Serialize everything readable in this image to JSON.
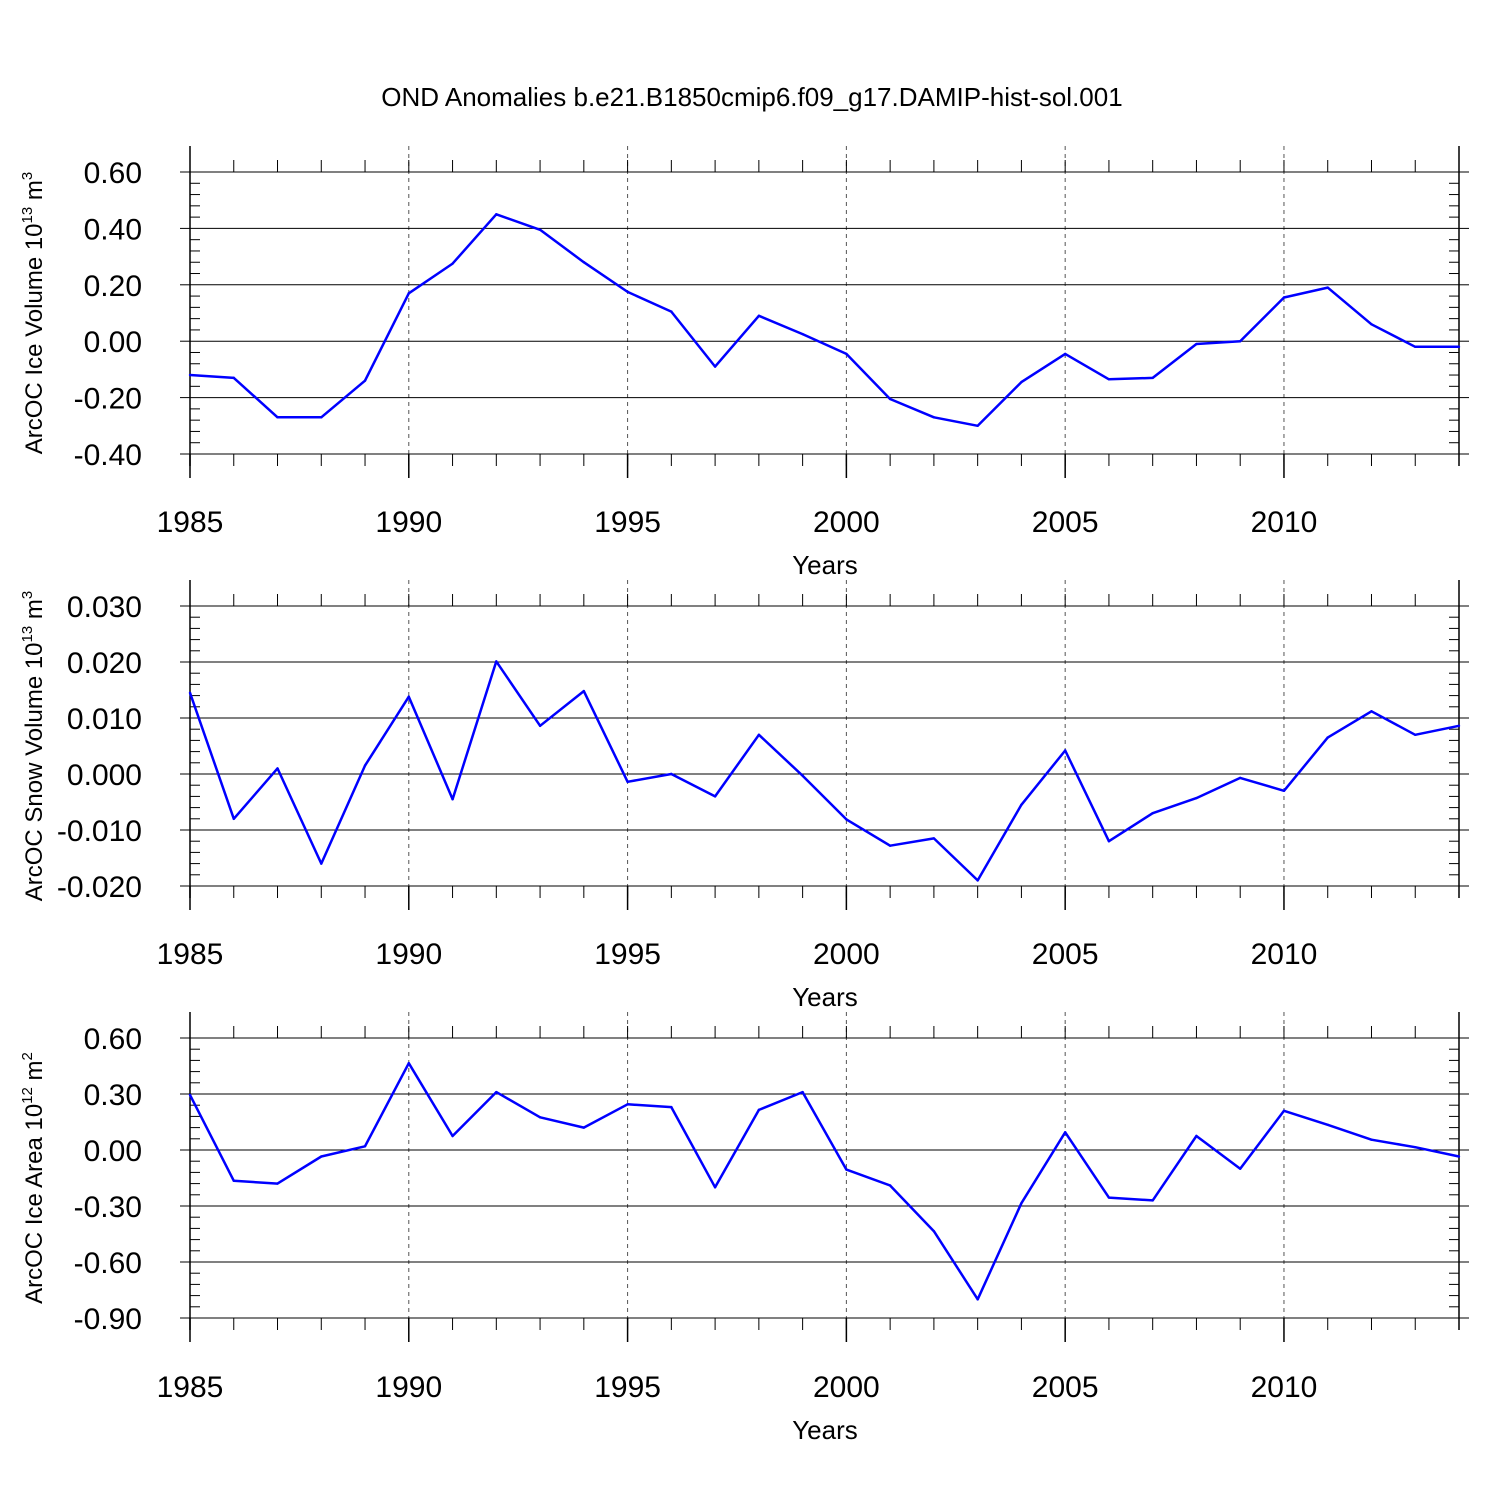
{
  "title": "OND Anomalies b.e21.B1850cmip6.f09_g17.DAMIP-hist-sol.001",
  "colors": {
    "line": "#0000ff",
    "axis": "#000000",
    "grid": "#555555"
  },
  "chart_data": [
    {
      "type": "line",
      "ylabel": {
        "text": "ArcOC Ice Volume 10",
        "exp": "13",
        "unit": " m",
        "unit_exp": "3"
      },
      "xlabel": "Years",
      "xlim": [
        1985,
        2014
      ],
      "ylim": [
        -0.4,
        0.6
      ],
      "yticks": [
        -0.4,
        -0.2,
        0.0,
        0.2,
        0.4,
        0.6
      ],
      "ytick_labels": [
        "-0.40",
        "-0.20",
        "0.00",
        "0.20",
        "0.40",
        "0.60"
      ],
      "xticks": [
        1985,
        1990,
        1995,
        2000,
        2005,
        2010
      ],
      "xtick_labels": [
        "1985",
        "1990",
        "1995",
        "2000",
        "2005",
        "2010"
      ],
      "grid_x": [
        1990,
        1995,
        2000,
        2005,
        2010
      ],
      "series": [
        {
          "name": "ArcOC Ice Volume",
          "x": [
            1985,
            1986,
            1987,
            1988,
            1989,
            1990,
            1991,
            1992,
            1993,
            1994,
            1995,
            1996,
            1997,
            1998,
            1999,
            2000,
            2001,
            2002,
            2003,
            2004,
            2005,
            2006,
            2007,
            2008,
            2009,
            2010,
            2011,
            2012,
            2013,
            2014
          ],
          "values": [
            -0.12,
            -0.13,
            -0.27,
            -0.27,
            -0.14,
            0.17,
            0.275,
            0.45,
            0.395,
            0.28,
            0.175,
            0.105,
            -0.09,
            0.09,
            0.025,
            -0.045,
            -0.205,
            -0.27,
            -0.3,
            -0.145,
            -0.045,
            -0.135,
            -0.13,
            -0.01,
            0.0,
            0.155,
            0.19,
            0.06,
            -0.02,
            -0.02
          ]
        }
      ]
    },
    {
      "type": "line",
      "ylabel": {
        "text": "ArcOC Snow Volume 10",
        "exp": "13",
        "unit": " m",
        "unit_exp": "3"
      },
      "xlabel": "Years",
      "xlim": [
        1985,
        2014
      ],
      "ylim": [
        -0.02,
        0.03
      ],
      "yticks": [
        -0.02,
        -0.01,
        0.0,
        0.01,
        0.02,
        0.03
      ],
      "ytick_labels": [
        "-0.020",
        "-0.010",
        "0.000",
        "0.010",
        "0.020",
        "0.030"
      ],
      "xticks": [
        1985,
        1990,
        1995,
        2000,
        2005,
        2010
      ],
      "xtick_labels": [
        "1985",
        "1990",
        "1995",
        "2000",
        "2005",
        "2010"
      ],
      "grid_x": [
        1990,
        1995,
        2000,
        2005,
        2010
      ],
      "series": [
        {
          "name": "ArcOC Snow Volume",
          "x": [
            1985,
            1986,
            1987,
            1988,
            1989,
            1990,
            1991,
            1992,
            1993,
            1994,
            1995,
            1996,
            1997,
            1998,
            1999,
            2000,
            2001,
            2002,
            2003,
            2004,
            2005,
            2006,
            2007,
            2008,
            2009,
            2010,
            2011,
            2012,
            2013,
            2014
          ],
          "values": [
            0.0145,
            -0.008,
            0.001,
            -0.016,
            0.0015,
            0.0138,
            -0.0045,
            0.0201,
            0.0086,
            0.0148,
            -0.0014,
            0.0,
            -0.004,
            0.007,
            -0.0003,
            -0.0081,
            -0.0128,
            -0.0115,
            -0.019,
            -0.0055,
            0.0042,
            -0.012,
            -0.007,
            -0.0043,
            -0.0007,
            -0.003,
            0.0065,
            0.0112,
            0.007,
            0.0086
          ]
        }
      ]
    },
    {
      "type": "line",
      "ylabel": {
        "text": "ArcOC Ice Area 10",
        "exp": "12",
        "unit": " m",
        "unit_exp": "2"
      },
      "xlabel": "Years",
      "xlim": [
        1985,
        2014
      ],
      "ylim": [
        -0.9,
        0.6
      ],
      "yticks": [
        -0.9,
        -0.6,
        -0.3,
        0.0,
        0.3,
        0.6
      ],
      "ytick_labels": [
        "-0.90",
        "-0.60",
        "-0.30",
        "0.00",
        "0.30",
        "0.60"
      ],
      "xticks": [
        1985,
        1990,
        1995,
        2000,
        2005,
        2010
      ],
      "xtick_labels": [
        "1985",
        "1990",
        "1995",
        "2000",
        "2005",
        "2010"
      ],
      "grid_x": [
        1990,
        1995,
        2000,
        2005,
        2010
      ],
      "series": [
        {
          "name": "ArcOC Ice Area",
          "x": [
            1985,
            1986,
            1987,
            1988,
            1989,
            1990,
            1991,
            1992,
            1993,
            1994,
            1995,
            1996,
            1997,
            1998,
            1999,
            2000,
            2001,
            2002,
            2003,
            2004,
            2005,
            2006,
            2007,
            2008,
            2009,
            2010,
            2011,
            2012,
            2013,
            2014
          ],
          "values": [
            0.295,
            -0.165,
            -0.18,
            -0.035,
            0.02,
            0.465,
            0.075,
            0.31,
            0.175,
            0.12,
            0.245,
            0.23,
            -0.2,
            0.215,
            0.31,
            -0.105,
            -0.19,
            -0.435,
            -0.8,
            -0.285,
            0.095,
            -0.255,
            -0.27,
            0.075,
            -0.1,
            0.21,
            0.135,
            0.055,
            0.015,
            -0.035
          ]
        }
      ]
    }
  ]
}
